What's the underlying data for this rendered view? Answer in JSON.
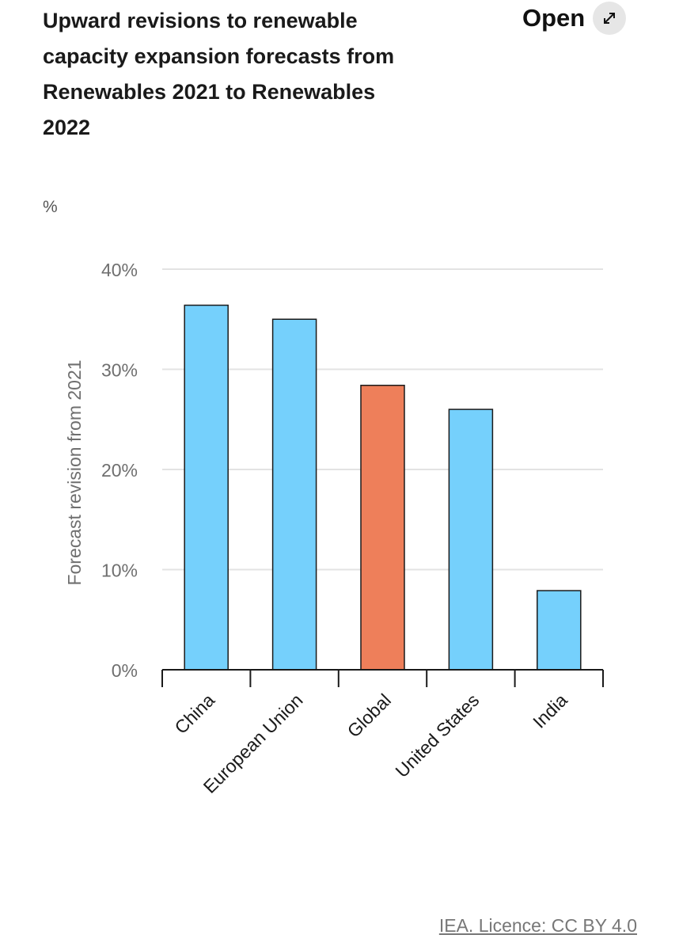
{
  "header": {
    "title": "Upward revisions to renewable capacity expansion forecasts from Renewables 2021 to Renewables 2022",
    "open_label": "Open",
    "open_icon": "expand-arrows-icon"
  },
  "unit_label": "%",
  "footer": {
    "source": "IEA. Licence: CC BY 4.0"
  },
  "chart_data": {
    "type": "bar",
    "title": "Upward revisions to renewable capacity expansion forecasts from Renewables 2021 to Renewables 2022",
    "ylabel": "Forecast revision from 2021",
    "xlabel": "",
    "categories": [
      "China",
      "European Union",
      "Global",
      "United States",
      "India"
    ],
    "values": [
      36.4,
      35.0,
      28.4,
      26.0,
      7.9
    ],
    "colors": [
      "#75d0fc",
      "#75d0fc",
      "#ee7f5a",
      "#75d0fc",
      "#75d0fc"
    ],
    "ylim": [
      0,
      40
    ],
    "yticks": [
      0,
      10,
      20,
      30,
      40
    ],
    "ytick_labels": [
      "0%",
      "10%",
      "20%",
      "30%",
      "40%"
    ],
    "grid": true,
    "legend": "none"
  }
}
